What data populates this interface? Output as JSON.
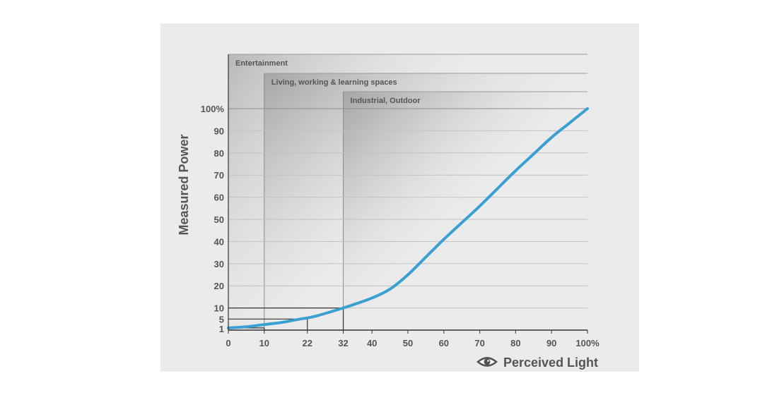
{
  "chart_data": {
    "type": "line",
    "xlabel": "Perceived Light",
    "ylabel": "Measured Power",
    "xlim": [
      0,
      100
    ],
    "ylim": [
      0,
      100
    ],
    "x_ticks": [
      "0",
      "10",
      "22",
      "32",
      "40",
      "50",
      "60",
      "70",
      "80",
      "90",
      "100%"
    ],
    "y_ticks": [
      "1",
      "5",
      "10",
      "20",
      "30",
      "40",
      "50",
      "60",
      "70",
      "80",
      "90",
      "100%"
    ],
    "x_tick_values": [
      0,
      10,
      22,
      32,
      40,
      50,
      60,
      70,
      80,
      90,
      100
    ],
    "y_tick_values": [
      1,
      5,
      10,
      20,
      30,
      40,
      50,
      60,
      70,
      80,
      90,
      100
    ],
    "zones": [
      {
        "label": "Entertainment",
        "from": 0
      },
      {
        "label": "Living, working & learning spaces",
        "from": 10
      },
      {
        "label": "Industrial, Outdoor",
        "from": 32
      }
    ],
    "series": [
      {
        "color": "#3a9fd1",
        "x": [
          0,
          5,
          10,
          15,
          20,
          22,
          25,
          32,
          35,
          40,
          45,
          50,
          55,
          60,
          65,
          70,
          75,
          80,
          85,
          90,
          95,
          100
        ],
        "y": [
          1,
          1.5,
          2.5,
          3.5,
          5,
          5.5,
          6.6,
          10,
          11.6,
          14.5,
          18.5,
          25,
          33,
          41,
          48.5,
          56,
          64,
          72,
          79.5,
          87,
          93.5,
          100
        ]
      }
    ],
    "guides": [
      {
        "x": 10,
        "y": 1
      },
      {
        "x": 22,
        "y": 5
      },
      {
        "x": 32,
        "y": 10
      }
    ],
    "grid": true
  },
  "icons": {
    "x_axis_icon": "eye-icon"
  }
}
